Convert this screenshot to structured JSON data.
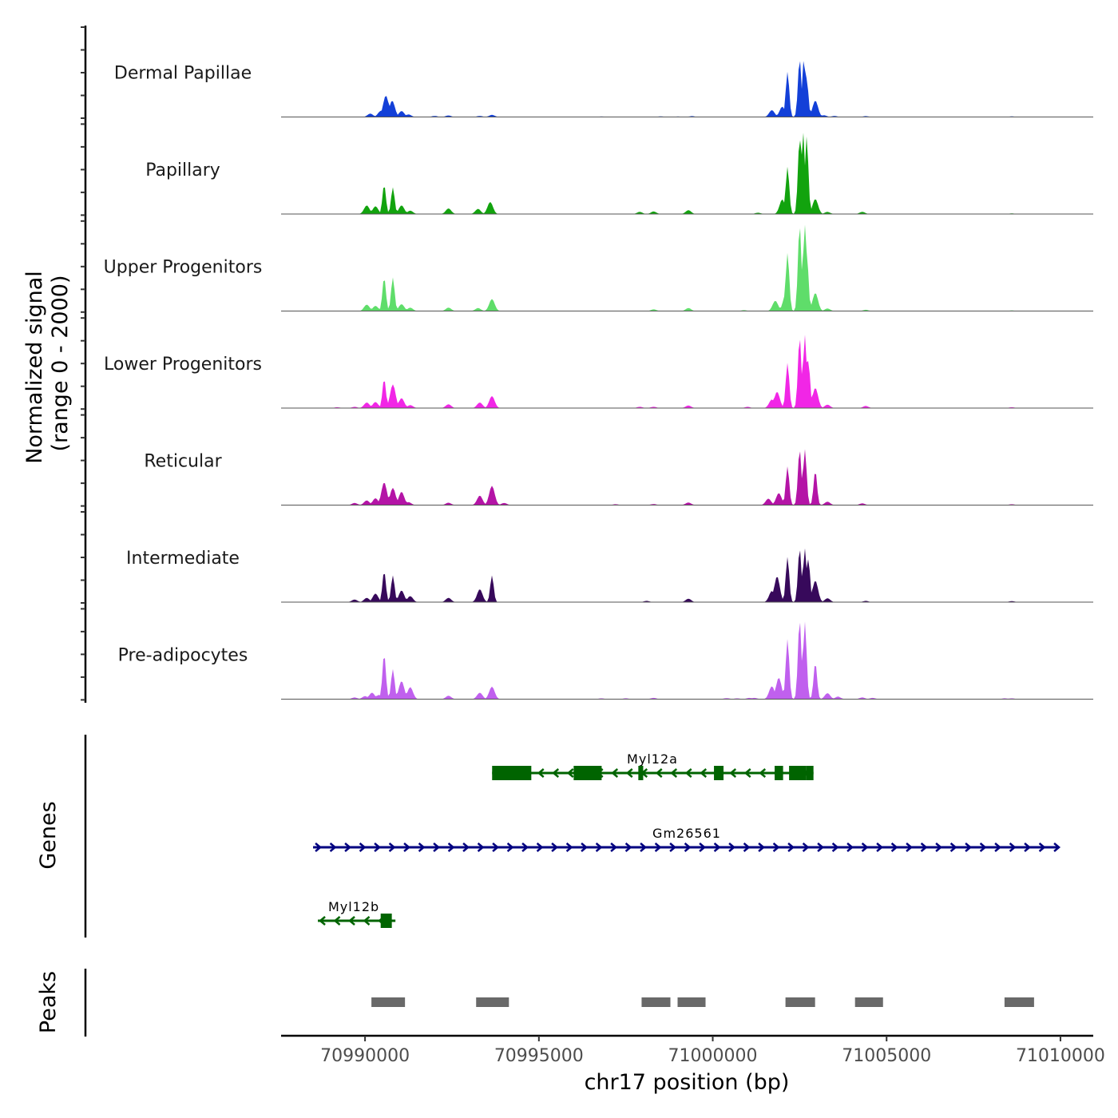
{
  "chart_data": {
    "type": "area",
    "title": "",
    "ylabel": "Normalized signal\n(range 0 - 2000)",
    "ylabel_lines": [
      "Normalized signal",
      "(range 0 - 2000)"
    ],
    "xlabel": "chr17 position (bp)",
    "chromosome": "chr17",
    "xlim": [
      70987586,
      71010943
    ],
    "x_ticks": [
      70990000,
      70995000,
      71000000,
      71005000,
      71010000
    ],
    "x_tick_labels": [
      "70990000",
      "70995000",
      "71000000",
      "71005000",
      "71010000"
    ],
    "ylim": [
      0,
      2000
    ],
    "grid": false,
    "tracks": [
      {
        "name": "Dermal Papillae",
        "color": "#1340d8",
        "peaks": [
          [
            70990150,
            80
          ],
          [
            70990450,
            140
          ],
          [
            70990600,
            500
          ],
          [
            70990800,
            130
          ],
          [
            70990780,
            380
          ],
          [
            70991050,
            140
          ],
          [
            70991250,
            60
          ],
          [
            70992000,
            25
          ],
          [
            70992400,
            35
          ],
          [
            70993300,
            25
          ],
          [
            70993650,
            50
          ],
          [
            70996800,
            12
          ],
          [
            70998500,
            15
          ],
          [
            70999000,
            12
          ],
          [
            70999400,
            20
          ],
          [
            71001700,
            160
          ],
          [
            71002000,
            240
          ],
          [
            71002150,
            1050
          ],
          [
            71002500,
            1350
          ],
          [
            71002620,
            1350
          ],
          [
            71002700,
            900
          ],
          [
            71002950,
            380
          ],
          [
            71003200,
            40
          ],
          [
            71003500,
            25
          ],
          [
            71004400,
            20
          ],
          [
            71008600,
            15
          ]
        ]
      },
      {
        "name": "Papillary",
        "color": "#12a30e",
        "peaks": [
          [
            70990050,
            200
          ],
          [
            70990300,
            180
          ],
          [
            70990550,
            680
          ],
          [
            70990800,
            620
          ],
          [
            70991050,
            200
          ],
          [
            70991300,
            80
          ],
          [
            70992400,
            130
          ],
          [
            70993250,
            120
          ],
          [
            70993600,
            280
          ],
          [
            70997900,
            50
          ],
          [
            70998300,
            60
          ],
          [
            70999300,
            90
          ],
          [
            71001300,
            30
          ],
          [
            71002000,
            340
          ],
          [
            71002150,
            1100
          ],
          [
            71002500,
            1780
          ],
          [
            71002600,
            1900
          ],
          [
            71002700,
            1800
          ],
          [
            71002950,
            350
          ],
          [
            71003300,
            50
          ],
          [
            71004300,
            50
          ],
          [
            71008600,
            15
          ]
        ]
      },
      {
        "name": "Upper Progenitors",
        "color": "#5fdd6a",
        "peaks": [
          [
            70990050,
            150
          ],
          [
            70990300,
            120
          ],
          [
            70990550,
            780
          ],
          [
            70990800,
            780
          ],
          [
            70991050,
            160
          ],
          [
            70991300,
            80
          ],
          [
            70992400,
            80
          ],
          [
            70993250,
            70
          ],
          [
            70993650,
            280
          ],
          [
            70998300,
            40
          ],
          [
            70999300,
            70
          ],
          [
            71000900,
            20
          ],
          [
            71001800,
            240
          ],
          [
            71002100,
            400
          ],
          [
            71002150,
            1350
          ],
          [
            71002500,
            2000
          ],
          [
            71002650,
            2050
          ],
          [
            71002700,
            1400
          ],
          [
            71002950,
            420
          ],
          [
            71003300,
            60
          ],
          [
            71004400,
            30
          ],
          [
            71008600,
            15
          ]
        ]
      },
      {
        "name": "Lower Progenitors",
        "color": "#f126e6",
        "peaks": [
          [
            70989200,
            20
          ],
          [
            70989700,
            30
          ],
          [
            70990050,
            130
          ],
          [
            70990300,
            140
          ],
          [
            70990550,
            680
          ],
          [
            70990800,
            550
          ],
          [
            70991050,
            230
          ],
          [
            70991300,
            70
          ],
          [
            70992400,
            90
          ],
          [
            70993300,
            130
          ],
          [
            70993650,
            280
          ],
          [
            70997900,
            30
          ],
          [
            70998300,
            30
          ],
          [
            70999300,
            60
          ],
          [
            71001000,
            30
          ],
          [
            71001700,
            200
          ],
          [
            71001850,
            380
          ],
          [
            71002150,
            1050
          ],
          [
            71002500,
            1650
          ],
          [
            71002650,
            1700
          ],
          [
            71002750,
            1100
          ],
          [
            71002950,
            470
          ],
          [
            71003300,
            80
          ],
          [
            71004400,
            50
          ],
          [
            71008600,
            20
          ]
        ]
      },
      {
        "name": "Reticular",
        "color": "#b414a6",
        "peaks": [
          [
            70989700,
            50
          ],
          [
            70990050,
            110
          ],
          [
            70990300,
            160
          ],
          [
            70990550,
            530
          ],
          [
            70990800,
            400
          ],
          [
            70991050,
            310
          ],
          [
            70991250,
            70
          ],
          [
            70992400,
            55
          ],
          [
            70993300,
            220
          ],
          [
            70993650,
            450
          ],
          [
            70994000,
            50
          ],
          [
            70997200,
            20
          ],
          [
            70998300,
            25
          ],
          [
            70999300,
            60
          ],
          [
            71001600,
            150
          ],
          [
            71001900,
            280
          ],
          [
            71002150,
            900
          ],
          [
            71002500,
            1300
          ],
          [
            71002650,
            1300
          ],
          [
            71002950,
            800
          ],
          [
            71003300,
            80
          ],
          [
            71004300,
            40
          ],
          [
            71008600,
            20
          ]
        ]
      },
      {
        "name": "Intermediate",
        "color": "#37095b",
        "peaks": [
          [
            70989700,
            60
          ],
          [
            70990050,
            100
          ],
          [
            70990300,
            200
          ],
          [
            70990550,
            720
          ],
          [
            70990800,
            620
          ],
          [
            70991050,
            270
          ],
          [
            70991300,
            140
          ],
          [
            70992400,
            100
          ],
          [
            70993300,
            300
          ],
          [
            70993650,
            620
          ],
          [
            70998100,
            30
          ],
          [
            70999300,
            80
          ],
          [
            71001700,
            260
          ],
          [
            71001850,
            600
          ],
          [
            71002150,
            1050
          ],
          [
            71002500,
            1250
          ],
          [
            71002650,
            1250
          ],
          [
            71002750,
            1000
          ],
          [
            71002950,
            500
          ],
          [
            71003300,
            90
          ],
          [
            71004400,
            30
          ],
          [
            71008600,
            25
          ]
        ]
      },
      {
        "name": "Pre-adipocytes",
        "color": "#c060ee",
        "peaks": [
          [
            70989700,
            40
          ],
          [
            70990000,
            70
          ],
          [
            70990200,
            150
          ],
          [
            70990400,
            100
          ],
          [
            70990550,
            1050
          ],
          [
            70990800,
            700
          ],
          [
            70991050,
            420
          ],
          [
            70991300,
            280
          ],
          [
            70992400,
            80
          ],
          [
            70993300,
            150
          ],
          [
            70993650,
            290
          ],
          [
            70996800,
            20
          ],
          [
            70997500,
            20
          ],
          [
            70998300,
            30
          ],
          [
            71000400,
            25
          ],
          [
            71000700,
            20
          ],
          [
            71001050,
            30
          ],
          [
            71001200,
            30
          ],
          [
            71001700,
            300
          ],
          [
            71001900,
            500
          ],
          [
            71002150,
            1400
          ],
          [
            71002500,
            1850
          ],
          [
            71002650,
            1800
          ],
          [
            71002950,
            850
          ],
          [
            71003300,
            140
          ],
          [
            71003600,
            60
          ],
          [
            71004300,
            40
          ],
          [
            71004600,
            30
          ],
          [
            71008400,
            20
          ],
          [
            71008600,
            20
          ]
        ]
      }
    ],
    "genes": [
      {
        "name": "Myl12a",
        "strand": "-",
        "color": "#006400",
        "start": 70993655,
        "end": 71002897,
        "row": 1,
        "exons": [
          [
            70993655,
            70994782
          ],
          [
            70996000,
            70996805
          ],
          [
            70997860,
            70998000
          ],
          [
            71000035,
            71000310
          ],
          [
            71001780,
            71002023
          ],
          [
            71002195,
            71002690
          ],
          [
            71002690,
            71002897
          ]
        ]
      },
      {
        "name": "Gm26561",
        "strand": "+",
        "color": "#000080",
        "start": 70988506,
        "end": 71009954,
        "row": 2,
        "exons": []
      },
      {
        "name": "Myl12b",
        "strand": "-",
        "color": "#006400",
        "start": 70988644,
        "end": 70990874,
        "row": 3,
        "exons": [
          [
            70990450,
            70990770
          ]
        ]
      }
    ],
    "peaks_track": {
      "color": "#696969",
      "regions": [
        [
          70990184,
          70991149
        ],
        [
          70993195,
          70994138
        ],
        [
          70997954,
          70998782
        ],
        [
          70998989,
          70999793
        ],
        [
          71002092,
          71002943
        ],
        [
          71004092,
          71004897
        ],
        [
          71008391,
          71009241
        ]
      ]
    },
    "panel_labels": {
      "genes": "Genes",
      "peaks": "Peaks"
    }
  }
}
